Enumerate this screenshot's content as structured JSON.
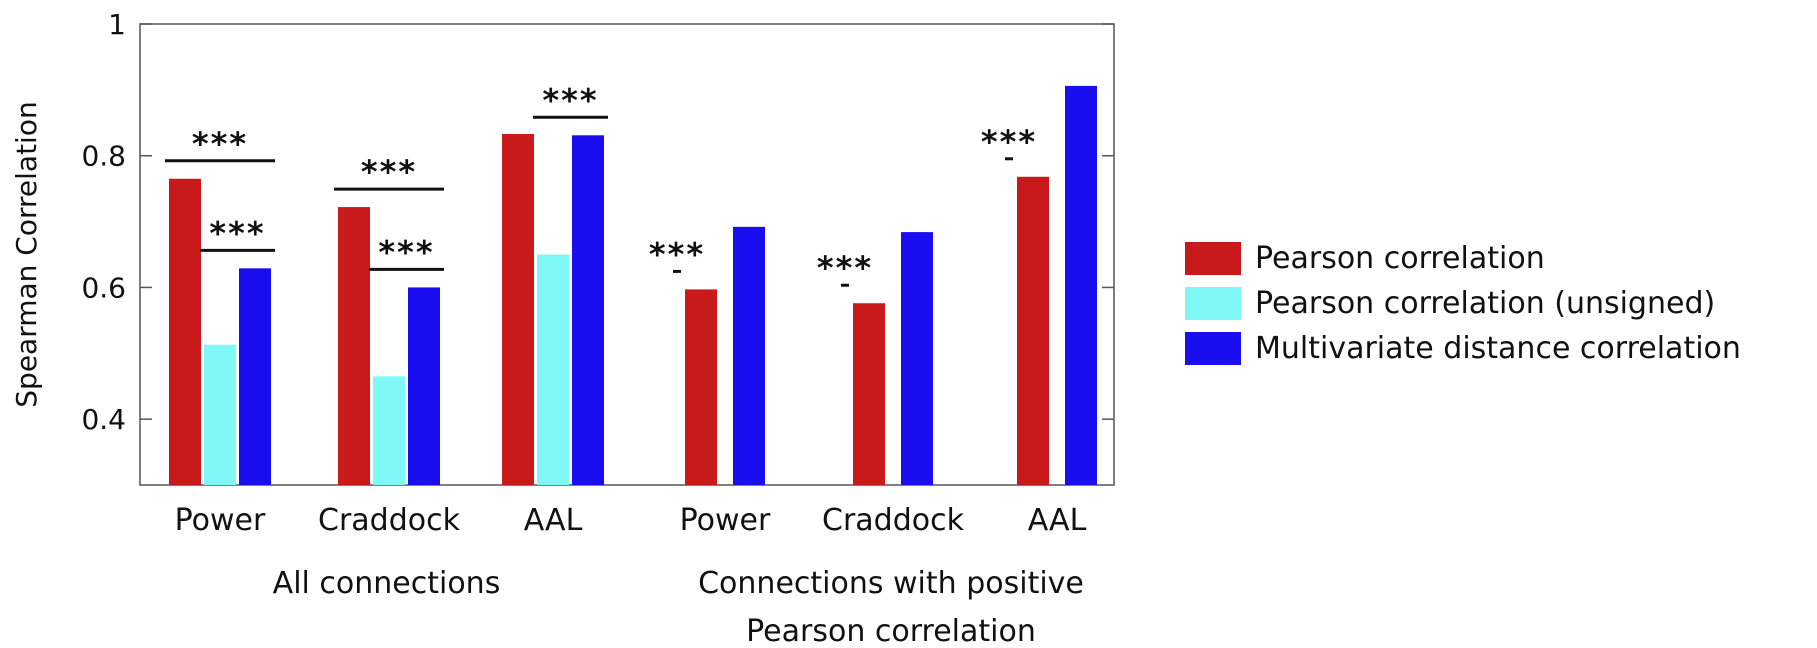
{
  "chart_data": {
    "type": "bar",
    "ylabel": "Spearman Correlation",
    "ylim": [
      0.3,
      1.0
    ],
    "yticks": [
      "0.4",
      "0.6",
      "0.8",
      "1"
    ],
    "ytick_values": [
      0.4,
      0.6,
      0.8,
      1.0
    ],
    "categories": [
      "Power",
      "Craddock",
      "AAL",
      "Power",
      "Craddock",
      "AAL"
    ],
    "groups": [
      {
        "label_lines": [
          "All connections"
        ],
        "category_indices": [
          0,
          1,
          2
        ]
      },
      {
        "label_lines": [
          "Connections with positive",
          "Pearson correlation"
        ],
        "category_indices": [
          3,
          4,
          5
        ]
      }
    ],
    "series": [
      {
        "name": "Pearson correlation",
        "color": "#c81a1a",
        "values": [
          0.765,
          0.722,
          0.833,
          0.597,
          0.576,
          0.768
        ]
      },
      {
        "name": "Pearson correlation (unsigned)",
        "color": "#80f7f7",
        "values": [
          0.513,
          0.465,
          0.65,
          null,
          null,
          null
        ]
      },
      {
        "name": "Multivariate distance correlation",
        "color": "#1a0df0",
        "values": [
          0.629,
          0.6,
          0.831,
          0.692,
          0.684,
          0.906
        ]
      }
    ],
    "significance": [
      {
        "category": 0,
        "from": 0,
        "to": 2,
        "label": "***"
      },
      {
        "category": 0,
        "from": 1,
        "to": 2,
        "label": "***"
      },
      {
        "category": 1,
        "from": 0,
        "to": 2,
        "label": "***"
      },
      {
        "category": 1,
        "from": 1,
        "to": 2,
        "label": "***"
      },
      {
        "category": 2,
        "from": 1,
        "to": 2,
        "label": "***"
      },
      {
        "category": 3,
        "from": 0,
        "to": 1,
        "label": "***"
      },
      {
        "category": 4,
        "from": 0,
        "to": 1,
        "label": "***"
      },
      {
        "category": 5,
        "from": 0,
        "to": 1,
        "label": "***"
      }
    ],
    "legend_position": "right",
    "grid": false
  }
}
